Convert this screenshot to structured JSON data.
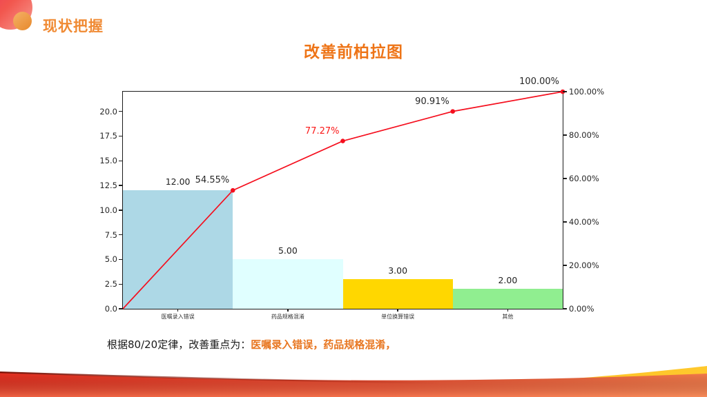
{
  "header": {
    "title": "现状把握"
  },
  "chart_title": "改善前柏拉图",
  "footer": {
    "prefix": "根据80/20定律，改善重点为：",
    "highlight": "医嘱录入错误，药品规格混淆，"
  },
  "chart_data": {
    "type": "pareto (bar + cumulative line)",
    "title": "改善前柏拉图",
    "categories": [
      "医嘱录入错误",
      "药品规格混淆",
      "单位换算错误",
      "其他"
    ],
    "values": [
      12,
      5,
      3,
      2
    ],
    "value_labels": [
      "12.00",
      "5.00",
      "3.00",
      "2.00"
    ],
    "cumulative_pct": [
      54.55,
      77.27,
      90.91,
      100.0
    ],
    "cumulative_labels": [
      "54.55%",
      "77.27%",
      "90.91%",
      "100.00%"
    ],
    "cumulative_label_colors": [
      "#262626",
      "#fb1717",
      "#262626",
      "#262626"
    ],
    "line_starts_at_zero": true,
    "left_axis": {
      "min": 0,
      "max": 22,
      "ticks": [
        "0.0",
        "2.5",
        "5.0",
        "7.5",
        "10.0",
        "12.5",
        "15.0",
        "17.5",
        "20.0"
      ]
    },
    "right_axis": {
      "min": 0,
      "max": 100,
      "ticks": [
        "0.00%",
        "20.00%",
        "40.00%",
        "60.00%",
        "80.00%",
        "100.00%"
      ]
    },
    "bar_colors": [
      "#add8e6",
      "#e0ffff",
      "#ffd700",
      "#90ee90"
    ],
    "line_color": "#f50f1e",
    "grid": false,
    "legend": "none"
  },
  "colors": {
    "header_title": "#f08a33",
    "chart_title": "#ee7417",
    "footer_highlight": "#e87722",
    "footer_text": "#1a1a1a",
    "axis": "#1a1a1a",
    "wave_red_start": "#e53021",
    "wave_red_end": "#f57a4a",
    "wave_gold": "#f6b21a",
    "wave_maroon_edge": "#7c1206",
    "logo_red": "#ee4054",
    "logo_orange": "#ed9a44"
  }
}
